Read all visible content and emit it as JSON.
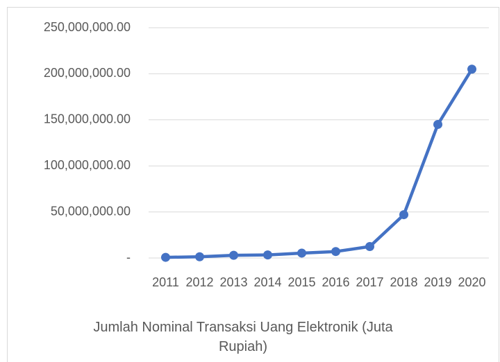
{
  "chart_data": {
    "type": "line",
    "title": "Jumlah Nominal Transaksi Uang Elektronik (Juta Rupiah)",
    "categories": [
      "2011",
      "2012",
      "2013",
      "2014",
      "2015",
      "2016",
      "2017",
      "2018",
      "2019",
      "2020"
    ],
    "series": [
      {
        "name": "Jumlah Nominal Transaksi Uang Elektronik (Juta Rupiah)",
        "color": "#4472c4",
        "values": [
          700000,
          1300000,
          2900000,
          3300000,
          5300000,
          7000000,
          12400000,
          47000000,
          145000000,
          205000000
        ]
      }
    ],
    "ylim": [
      0,
      250000000
    ],
    "yticks": [
      {
        "value": 0,
        "label": "-"
      },
      {
        "value": 50000000,
        "label": "50,000,000.00"
      },
      {
        "value": 100000000,
        "label": "100,000,000.00"
      },
      {
        "value": 150000000,
        "label": "150,000,000.00"
      },
      {
        "value": 200000000,
        "label": "200,000,000.00"
      },
      {
        "value": 250000000,
        "label": "250,000,000.00"
      }
    ],
    "grid": true
  }
}
